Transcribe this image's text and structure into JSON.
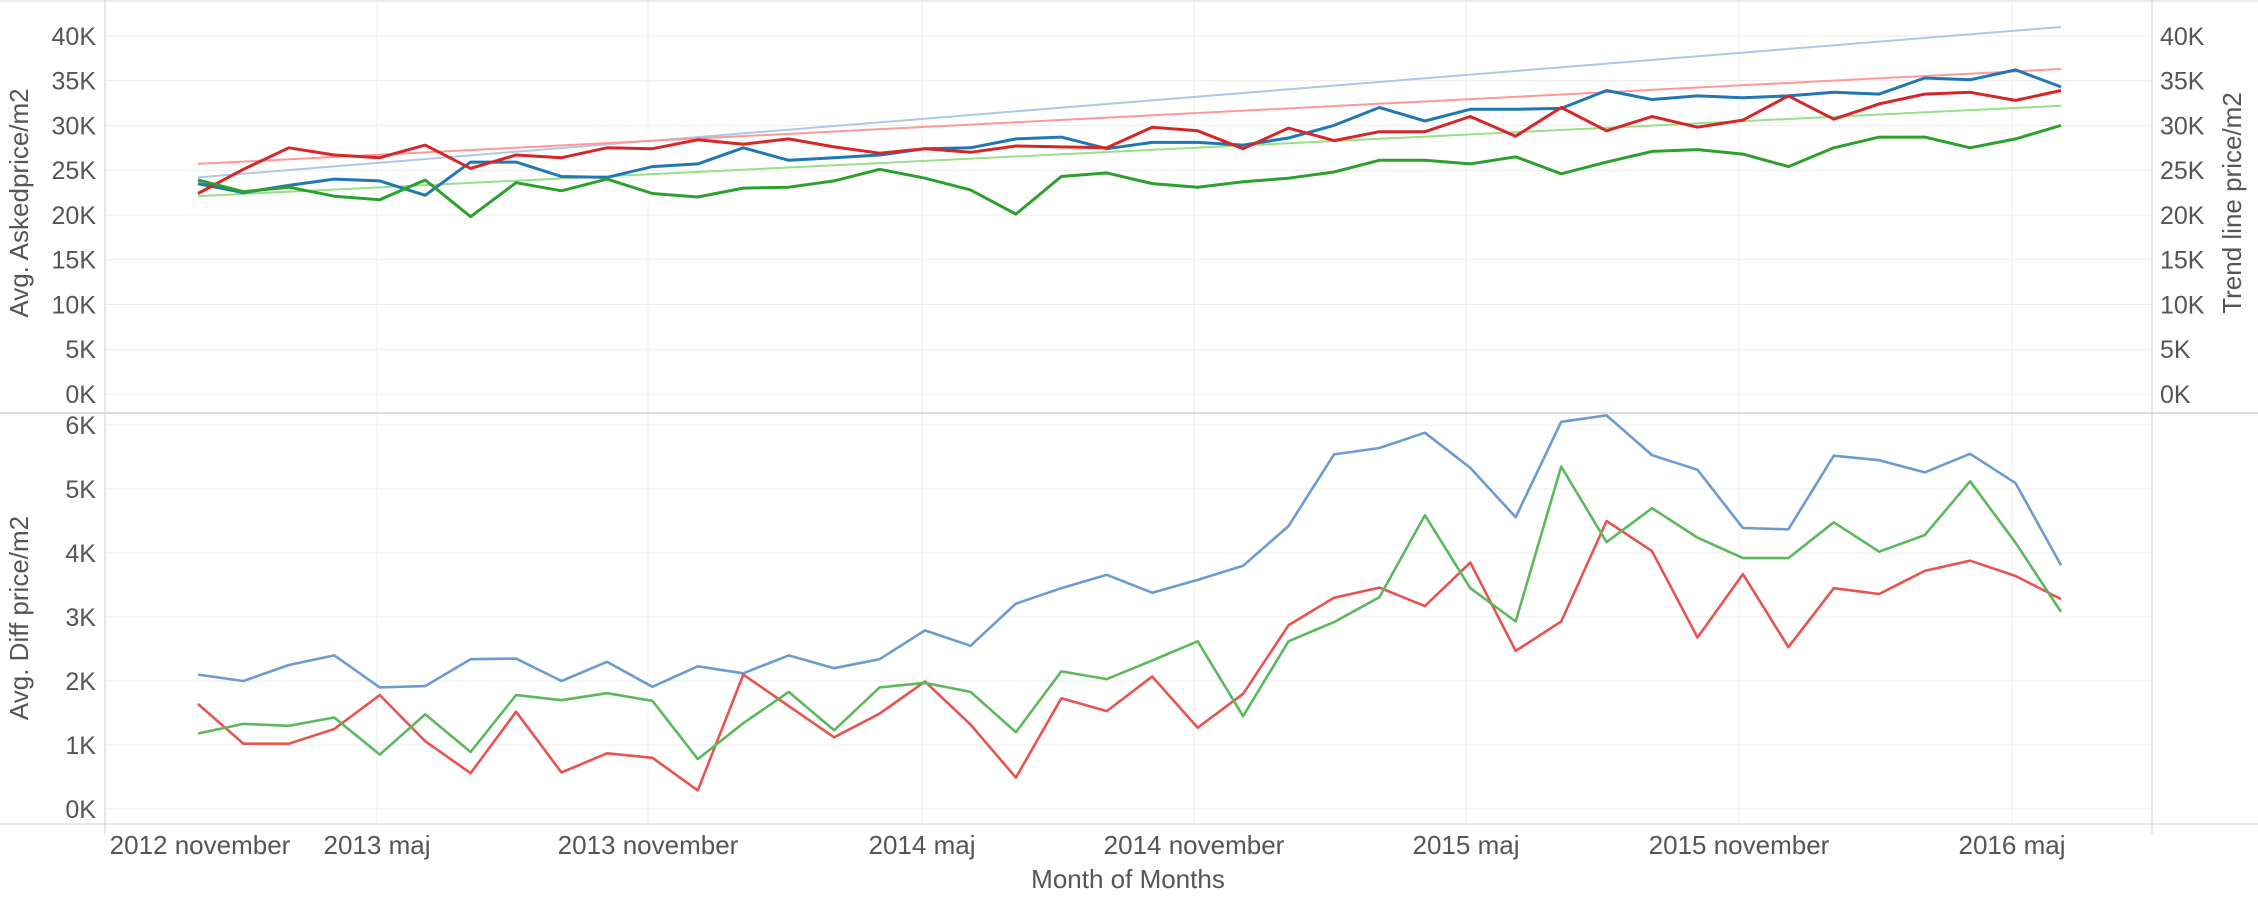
{
  "chart_data": [
    {
      "type": "line",
      "panel": "top",
      "ylabel": "Avg. Askedprice/m2",
      "ylabel_right": "Trend line price/m2",
      "ylim": [
        0,
        42000
      ],
      "y_ticks": [
        0,
        5000,
        10000,
        15000,
        20000,
        25000,
        30000,
        35000,
        40000
      ],
      "y_tick_labels": [
        "0K",
        "5K",
        "10K",
        "15K",
        "20K",
        "25K",
        "30K",
        "35K",
        "40K"
      ],
      "grid": true,
      "series": [
        {
          "color": "#1f77b4",
          "values": [
            23500,
            22500,
            23300,
            24000,
            23800,
            22200,
            25900,
            25900,
            24300,
            24200,
            25400,
            25700,
            27500,
            26100,
            26400,
            26700,
            27400,
            27500,
            28500,
            28700,
            27400,
            28100,
            28100,
            27800,
            28600,
            30000,
            32000,
            30500,
            31800,
            31800,
            31900,
            33900,
            32900,
            33300,
            33100,
            33300,
            33700,
            33500,
            35300,
            35100,
            36200,
            34300
          ]
        },
        {
          "color": "#d62728",
          "values": [
            22400,
            25100,
            27500,
            26700,
            26400,
            27800,
            25200,
            26700,
            26400,
            27500,
            27400,
            28400,
            27900,
            28500,
            27600,
            26900,
            27400,
            27000,
            27700,
            27600,
            27500,
            29800,
            29400,
            27400,
            29700,
            28300,
            29300,
            29300,
            31000,
            28800,
            32000,
            29400,
            31000,
            29800,
            30600,
            33300,
            30700,
            32400,
            33500,
            33700,
            32800,
            33900
          ]
        },
        {
          "color": "#2ca02c",
          "values": [
            23900,
            22600,
            23100,
            22100,
            21700,
            23900,
            19800,
            23600,
            22700,
            24000,
            22400,
            22000,
            23000,
            23100,
            23800,
            25100,
            24100,
            22800,
            20100,
            24300,
            24700,
            23500,
            23100,
            23700,
            24100,
            24800,
            26100,
            26100,
            25700,
            26500,
            24600,
            25900,
            27100,
            27300,
            26800,
            25400,
            27500,
            28700,
            28700,
            27500,
            28500,
            30000
          ]
        }
      ],
      "trend_lines": [
        {
          "color": "#aec7e8",
          "start": 24200,
          "end": 41000
        },
        {
          "color": "#ff9896",
          "start": 25700,
          "end": 36300
        },
        {
          "color": "#98df8a",
          "start": 22100,
          "end": 32200
        }
      ]
    },
    {
      "type": "line",
      "panel": "bottom",
      "ylabel": "Avg. Diff price/m2",
      "xlabel": "Month of Months",
      "ylim": [
        0,
        6000
      ],
      "y_ticks": [
        0,
        1000,
        2000,
        3000,
        4000,
        5000,
        6000
      ],
      "y_tick_labels": [
        "0K",
        "1K",
        "2K",
        "3K",
        "4K",
        "5K",
        "6K"
      ],
      "grid": true,
      "x_tick_labels": [
        "2012 november",
        "2013 maj",
        "2013 november",
        "2014 maj",
        "2014 november",
        "2015 maj",
        "2015 november",
        "2016 maj"
      ],
      "series": [
        {
          "color": "#6b9bd2",
          "values": [
            2100,
            2000,
            2250,
            2400,
            1900,
            1920,
            2340,
            2350,
            2000,
            2300,
            1910,
            2230,
            2120,
            2400,
            2200,
            2340,
            2790,
            2550,
            3210,
            3450,
            3660,
            3380,
            3580,
            3800,
            4420,
            5540,
            5640,
            5880,
            5330,
            4560,
            6050,
            6150,
            5530,
            5300,
            4390,
            4370,
            5520,
            5450,
            5260,
            5550,
            5090,
            3810
          ]
        },
        {
          "color": "#e8534f",
          "values": [
            1640,
            1020,
            1020,
            1250,
            1780,
            1060,
            560,
            1520,
            570,
            870,
            800,
            290,
            2100,
            1610,
            1120,
            1490,
            1990,
            1320,
            490,
            1730,
            1530,
            2070,
            1270,
            1800,
            2870,
            3300,
            3460,
            3170,
            3850,
            2470,
            2930,
            4500,
            4030,
            2680,
            3670,
            2530,
            3450,
            3360,
            3720,
            3880,
            3640,
            3280
          ]
        },
        {
          "color": "#5cb85c",
          "values": [
            1180,
            1330,
            1300,
            1430,
            850,
            1480,
            890,
            1780,
            1700,
            1810,
            1690,
            780,
            1340,
            1830,
            1230,
            1900,
            1970,
            1830,
            1200,
            2150,
            2030,
            2320,
            2620,
            1450,
            2620,
            2920,
            3310,
            4590,
            3450,
            2930,
            5350,
            4170,
            4700,
            4240,
            3920,
            3920,
            4480,
            4020,
            4280,
            5120,
            4160,
            3080
          ]
        }
      ]
    }
  ]
}
